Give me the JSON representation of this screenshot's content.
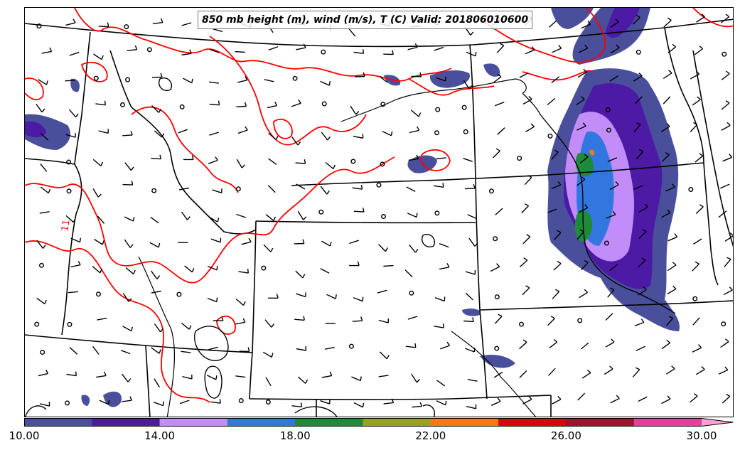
{
  "title": "850 mb height (m), wind (m/s), T (C) Valid: 201806010600",
  "colorbar": {
    "colors": [
      "#4a4f9b",
      "#4d1aa6",
      "#c28df8",
      "#3277e0",
      "#1e8a3c",
      "#99a31a",
      "#fa7a05",
      "#d10a0a",
      "#a3102e",
      "#ee3a9c",
      "#f9a1d3"
    ],
    "tick_labels": [
      "10.00",
      "14.00",
      "18.00",
      "22.00",
      "26.00",
      "30.00"
    ],
    "tick_values": [
      10,
      14,
      18,
      22,
      26,
      30
    ],
    "range": [
      10,
      31
    ],
    "extend": "max"
  },
  "contour_labels": [
    {
      "text": "11",
      "color": "#ff0000"
    }
  ],
  "colors": {
    "temperature_contour": "#ff0000",
    "boundaries": "#000000",
    "height_contour": "#000000"
  }
}
